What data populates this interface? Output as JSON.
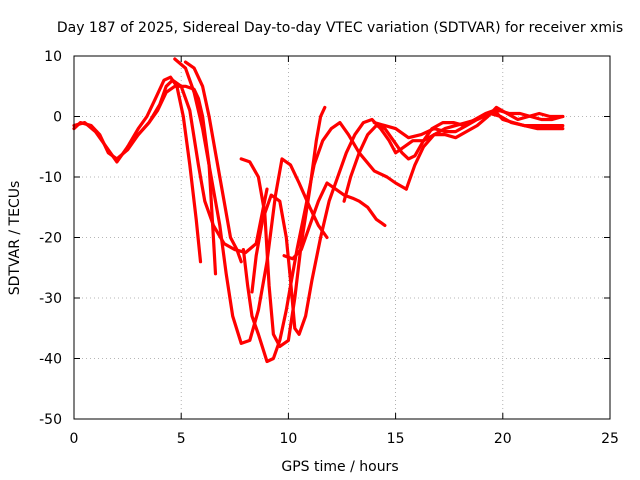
{
  "chart_data": {
    "type": "line",
    "title": "Day 187 of 2025, Sidereal Day-to-day VTEC variation (SDTVAR) for receiver xmis",
    "xlabel": "GPS time / hours",
    "ylabel": "SDTVAR / TECUs",
    "xlim": [
      0,
      25
    ],
    "ylim": [
      -50,
      10
    ],
    "xticks": [
      0,
      5,
      10,
      15,
      20,
      25
    ],
    "yticks": [
      -50,
      -40,
      -30,
      -20,
      -10,
      0,
      10
    ],
    "grid": true,
    "legend": "none",
    "colors": {
      "series": "#ff0000",
      "frame": "#000000",
      "grid": "#a0a0a0"
    },
    "series": [
      {
        "values": [
          [
            0.0,
            -2
          ],
          [
            0.3,
            -1
          ],
          [
            0.8,
            -1.5
          ],
          [
            1.2,
            -3
          ],
          [
            1.6,
            -6
          ],
          [
            2.0,
            -7
          ],
          [
            2.5,
            -5.5
          ],
          [
            3.0,
            -3
          ],
          [
            3.5,
            -1
          ],
          [
            4.0,
            2
          ],
          [
            4.3,
            5
          ],
          [
            4.6,
            6
          ],
          [
            5.0,
            5
          ],
          [
            5.4,
            1
          ],
          [
            5.8,
            -8
          ],
          [
            6.1,
            -14
          ],
          [
            6.5,
            -18
          ],
          [
            7.0,
            -21
          ],
          [
            7.5,
            -22
          ],
          [
            8.0,
            -22.5
          ],
          [
            8.5,
            -21
          ],
          [
            9.0,
            -12
          ]
        ]
      },
      {
        "values": [
          [
            0.0,
            -1.5
          ],
          [
            0.5,
            -1
          ],
          [
            1.0,
            -2.5
          ],
          [
            1.5,
            -5
          ],
          [
            2.0,
            -7.5
          ],
          [
            2.5,
            -5
          ],
          [
            3.0,
            -2
          ],
          [
            3.4,
            0
          ],
          [
            3.8,
            3
          ],
          [
            4.2,
            6
          ],
          [
            4.5,
            6.5
          ],
          [
            4.8,
            5
          ],
          [
            5.1,
            0
          ],
          [
            5.4,
            -8
          ],
          [
            5.7,
            -17
          ],
          [
            5.9,
            -24
          ]
        ]
      },
      {
        "values": [
          [
            2.5,
            -5
          ],
          [
            3.0,
            -3
          ],
          [
            3.5,
            -1
          ],
          [
            3.9,
            1
          ],
          [
            4.3,
            4
          ],
          [
            4.7,
            5
          ],
          [
            5.2,
            5
          ],
          [
            5.6,
            4.5
          ],
          [
            5.8,
            3
          ],
          [
            6.0,
            0
          ],
          [
            6.3,
            -8
          ],
          [
            6.5,
            -20
          ],
          [
            6.6,
            -26
          ]
        ]
      },
      {
        "values": [
          [
            4.7,
            9.5
          ],
          [
            5.2,
            8
          ],
          [
            5.6,
            4
          ],
          [
            6.0,
            -2
          ],
          [
            6.4,
            -10
          ],
          [
            6.8,
            -18
          ],
          [
            7.1,
            -26
          ],
          [
            7.4,
            -33
          ],
          [
            7.8,
            -37.5
          ],
          [
            8.2,
            -37
          ],
          [
            8.6,
            -32
          ],
          [
            9.0,
            -24
          ],
          [
            9.4,
            -13
          ],
          [
            9.7,
            -7
          ],
          [
            10.1,
            -8
          ],
          [
            10.5,
            -11
          ],
          [
            11.0,
            -15
          ],
          [
            11.4,
            -18
          ],
          [
            11.8,
            -20
          ]
        ]
      },
      {
        "values": [
          [
            5.2,
            9
          ],
          [
            5.6,
            8
          ],
          [
            6.0,
            5
          ],
          [
            6.3,
            0
          ],
          [
            6.6,
            -6
          ],
          [
            7.0,
            -14
          ],
          [
            7.3,
            -20
          ],
          [
            7.6,
            -22
          ],
          [
            7.8,
            -24
          ]
        ]
      },
      {
        "values": [
          [
            7.8,
            -7
          ],
          [
            8.2,
            -7.5
          ],
          [
            8.6,
            -10
          ],
          [
            8.9,
            -16
          ],
          [
            9.1,
            -28
          ],
          [
            9.3,
            -36
          ],
          [
            9.6,
            -38
          ],
          [
            10.0,
            -37
          ],
          [
            10.3,
            -30
          ],
          [
            10.6,
            -21
          ],
          [
            11.0,
            -12
          ],
          [
            11.3,
            -4
          ],
          [
            11.5,
            0
          ],
          [
            11.7,
            1.5
          ]
        ]
      },
      {
        "values": [
          [
            7.9,
            -22
          ],
          [
            8.1,
            -28
          ],
          [
            8.3,
            -33
          ],
          [
            8.6,
            -36
          ],
          [
            9.0,
            -40.5
          ],
          [
            9.3,
            -40
          ],
          [
            9.6,
            -37
          ],
          [
            9.9,
            -32
          ],
          [
            10.1,
            -28
          ],
          [
            10.4,
            -22
          ],
          [
            10.8,
            -15
          ],
          [
            11.2,
            -8
          ],
          [
            11.6,
            -4
          ],
          [
            12.0,
            -2
          ],
          [
            12.4,
            -1
          ],
          [
            12.8,
            -3
          ],
          [
            13.3,
            -6
          ],
          [
            14.0,
            -9
          ],
          [
            14.6,
            -10
          ],
          [
            15.0,
            -11
          ],
          [
            15.5,
            -12
          ]
        ]
      },
      {
        "values": [
          [
            8.3,
            -29
          ],
          [
            8.5,
            -23
          ],
          [
            8.8,
            -17
          ],
          [
            9.2,
            -13
          ],
          [
            9.6,
            -14
          ],
          [
            9.9,
            -20
          ],
          [
            10.1,
            -27
          ],
          [
            10.3,
            -35
          ],
          [
            10.5,
            -36
          ],
          [
            10.8,
            -33
          ],
          [
            11.1,
            -27
          ],
          [
            11.5,
            -20
          ],
          [
            11.9,
            -14
          ],
          [
            12.3,
            -10
          ],
          [
            12.7,
            -6
          ],
          [
            13.1,
            -3
          ],
          [
            13.5,
            -1
          ],
          [
            13.9,
            -0.5
          ],
          [
            14.3,
            -2
          ],
          [
            14.7,
            -4
          ],
          [
            15.0,
            -6
          ],
          [
            15.4,
            -5
          ],
          [
            15.8,
            -4
          ],
          [
            16.3,
            -4
          ],
          [
            16.8,
            -3
          ],
          [
            17.3,
            -2
          ],
          [
            17.8,
            -1.5
          ],
          [
            18.3,
            -1
          ],
          [
            18.8,
            -0.5
          ],
          [
            19.4,
            0.5
          ],
          [
            19.8,
            1
          ],
          [
            20.3,
            0.5
          ],
          [
            20.8,
            0.5
          ],
          [
            21.3,
            0
          ],
          [
            21.8,
            -0.5
          ],
          [
            22.3,
            -0.5
          ],
          [
            22.8,
            0
          ]
        ]
      },
      {
        "values": [
          [
            9.8,
            -23
          ],
          [
            10.2,
            -23.5
          ],
          [
            10.6,
            -22
          ],
          [
            11.0,
            -18
          ],
          [
            11.4,
            -14
          ],
          [
            11.8,
            -11
          ],
          [
            12.2,
            -12
          ],
          [
            12.6,
            -13
          ],
          [
            13.0,
            -13.5
          ],
          [
            13.3,
            -14
          ],
          [
            13.7,
            -15
          ],
          [
            14.1,
            -17
          ],
          [
            14.5,
            -18
          ]
        ]
      },
      {
        "values": [
          [
            12.6,
            -14
          ],
          [
            12.9,
            -10
          ],
          [
            13.3,
            -6
          ],
          [
            13.7,
            -3
          ],
          [
            14.1,
            -1.5
          ],
          [
            14.5,
            -2
          ],
          [
            14.9,
            -4
          ],
          [
            15.3,
            -6
          ],
          [
            15.6,
            -7
          ],
          [
            15.9,
            -6.5
          ],
          [
            16.3,
            -4
          ],
          [
            16.7,
            -2
          ],
          [
            17.2,
            -1
          ],
          [
            17.7,
            -1
          ],
          [
            18.2,
            -1.5
          ],
          [
            18.7,
            -0.5
          ],
          [
            19.2,
            0.5
          ],
          [
            19.6,
            1
          ],
          [
            20.0,
            -0.5
          ],
          [
            20.5,
            -1
          ],
          [
            21.0,
            -1.5
          ],
          [
            21.5,
            -1.5
          ],
          [
            22.0,
            -1.5
          ],
          [
            22.5,
            -1.5
          ],
          [
            22.8,
            -1.5
          ]
        ]
      },
      {
        "values": [
          [
            14.0,
            -1
          ],
          [
            14.5,
            -1.5
          ],
          [
            15.0,
            -2
          ],
          [
            15.6,
            -3.5
          ],
          [
            16.2,
            -3
          ],
          [
            16.8,
            -2
          ],
          [
            17.3,
            -2.5
          ],
          [
            17.8,
            -2.5
          ],
          [
            18.3,
            -1.5
          ],
          [
            18.8,
            -0.5
          ],
          [
            19.4,
            0.5
          ],
          [
            19.9,
            0
          ],
          [
            20.4,
            -1
          ],
          [
            21.0,
            -1.5
          ],
          [
            21.6,
            -2
          ],
          [
            22.2,
            -2
          ],
          [
            22.8,
            -2
          ]
        ]
      },
      {
        "values": [
          [
            15.5,
            -12
          ],
          [
            15.9,
            -8
          ],
          [
            16.3,
            -5
          ],
          [
            16.8,
            -3
          ],
          [
            17.3,
            -3
          ],
          [
            17.8,
            -3.5
          ],
          [
            18.3,
            -2.5
          ],
          [
            18.8,
            -1.5
          ],
          [
            19.3,
            0
          ],
          [
            19.7,
            1.5
          ],
          [
            20.2,
            0.5
          ],
          [
            20.7,
            -0.5
          ],
          [
            21.2,
            0
          ],
          [
            21.7,
            0.5
          ],
          [
            22.2,
            0
          ],
          [
            22.8,
            0
          ]
        ]
      }
    ]
  }
}
